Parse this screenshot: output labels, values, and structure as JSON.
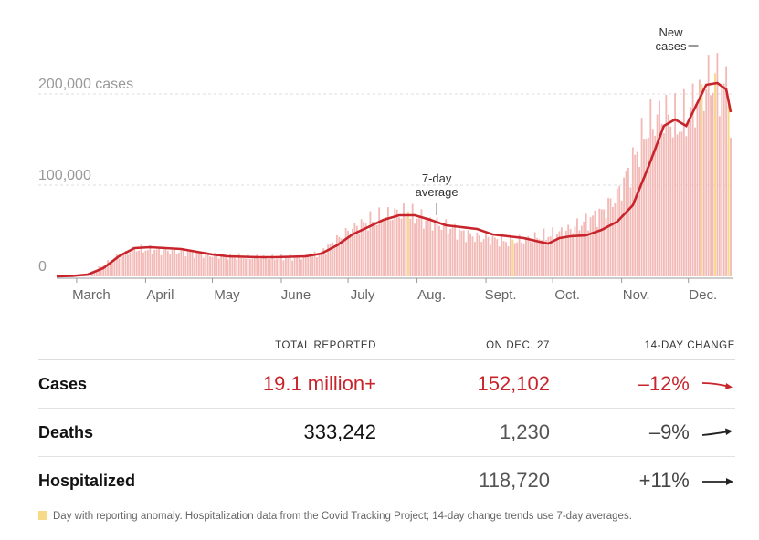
{
  "chart_data": {
    "type": "bar",
    "title": "",
    "xlabel": "",
    "ylabel": "",
    "ylim": [
      0,
      220000
    ],
    "grid": true,
    "y_ticks": [
      {
        "value": 0,
        "label": "0"
      },
      {
        "value": 100000,
        "label": "100,000"
      },
      {
        "value": 200000,
        "label": "200,000 cases"
      }
    ],
    "x_ticks": [
      {
        "day": 9,
        "label": "March"
      },
      {
        "day": 40,
        "label": "April"
      },
      {
        "day": 70,
        "label": "May"
      },
      {
        "day": 101,
        "label": "June"
      },
      {
        "day": 131,
        "label": "July"
      },
      {
        "day": 162,
        "label": "Aug."
      },
      {
        "day": 193,
        "label": "Sept."
      },
      {
        "day": 223,
        "label": "Oct."
      },
      {
        "day": 254,
        "label": "Nov."
      },
      {
        "day": 284,
        "label": "Dec."
      }
    ],
    "series": [
      {
        "kind": "bars",
        "note": "daily new cases",
        "values_by_day": [
          [
            0,
            100
          ],
          [
            7,
            600
          ],
          [
            14,
            2500
          ],
          [
            21,
            12000
          ],
          [
            28,
            22000
          ],
          [
            35,
            30000
          ],
          [
            42,
            29000
          ],
          [
            49,
            28000
          ],
          [
            56,
            27000
          ],
          [
            63,
            25000
          ],
          [
            70,
            23000
          ],
          [
            77,
            22000
          ],
          [
            84,
            21000
          ],
          [
            91,
            21000
          ],
          [
            98,
            20000
          ],
          [
            105,
            21000
          ],
          [
            112,
            22000
          ],
          [
            119,
            26000
          ],
          [
            126,
            40000
          ],
          [
            133,
            52000
          ],
          [
            140,
            60000
          ],
          [
            147,
            65000
          ],
          [
            154,
            70000
          ],
          [
            161,
            66000
          ],
          [
            168,
            60000
          ],
          [
            175,
            55000
          ],
          [
            182,
            48000
          ],
          [
            189,
            43000
          ],
          [
            196,
            41000
          ],
          [
            203,
            38000
          ],
          [
            210,
            40000
          ],
          [
            217,
            43000
          ],
          [
            224,
            46000
          ],
          [
            231,
            52000
          ],
          [
            238,
            60000
          ],
          [
            245,
            70000
          ],
          [
            252,
            88000
          ],
          [
            259,
            125000
          ],
          [
            266,
            165000
          ],
          [
            273,
            178000
          ],
          [
            280,
            165000
          ],
          [
            287,
            190000
          ],
          [
            294,
            215000
          ],
          [
            301,
            205000
          ],
          [
            303,
            152102
          ]
        ]
      },
      {
        "kind": "line",
        "name": "7-day average",
        "values_by_day": [
          [
            0,
            0
          ],
          [
            7,
            500
          ],
          [
            14,
            2000
          ],
          [
            21,
            9000
          ],
          [
            28,
            22000
          ],
          [
            35,
            31000
          ],
          [
            42,
            32000
          ],
          [
            49,
            31000
          ],
          [
            56,
            30000
          ],
          [
            63,
            27000
          ],
          [
            70,
            24000
          ],
          [
            77,
            22000
          ],
          [
            84,
            21500
          ],
          [
            91,
            21000
          ],
          [
            98,
            21000
          ],
          [
            105,
            21500
          ],
          [
            112,
            22000
          ],
          [
            119,
            25000
          ],
          [
            126,
            34000
          ],
          [
            133,
            46000
          ],
          [
            140,
            54000
          ],
          [
            147,
            62000
          ],
          [
            154,
            67000
          ],
          [
            161,
            67000
          ],
          [
            168,
            62000
          ],
          [
            175,
            56000
          ],
          [
            182,
            54000
          ],
          [
            189,
            52000
          ],
          [
            196,
            46000
          ],
          [
            203,
            44000
          ],
          [
            210,
            42000
          ],
          [
            217,
            38000
          ],
          [
            221,
            36000
          ],
          [
            226,
            42000
          ],
          [
            231,
            44000
          ],
          [
            238,
            45000
          ],
          [
            245,
            51000
          ],
          [
            252,
            60000
          ],
          [
            259,
            78000
          ],
          [
            266,
            120000
          ],
          [
            273,
            165000
          ],
          [
            278,
            172000
          ],
          [
            283,
            165000
          ],
          [
            287,
            185000
          ],
          [
            292,
            210000
          ],
          [
            297,
            212000
          ],
          [
            301,
            205000
          ],
          [
            303,
            180000
          ]
        ]
      }
    ],
    "anomaly_days": [
      158,
      205,
      290,
      296,
      302
    ],
    "annotations": [
      {
        "text_lines": [
          "7-day",
          "average"
        ],
        "day": 161
      },
      {
        "text_lines": [
          "New",
          "cases"
        ],
        "day": 295
      }
    ],
    "colors": {
      "bars": "#f2b9b6",
      "line": "#c8242b",
      "anomaly": "#f7d98a",
      "grid": "#dddddd"
    }
  },
  "table": {
    "headers": {
      "total": "TOTAL REPORTED",
      "today": "ON DEC. 27",
      "change": "14-DAY CHANGE"
    },
    "rows": [
      {
        "label": "Cases",
        "total": "19.1 million+",
        "today": "152,102",
        "change": "–12%"
      },
      {
        "label": "Deaths",
        "total": "333,242",
        "today": "1,230",
        "change": "–9%"
      },
      {
        "label": "Hospitalized",
        "total": "",
        "today": "118,720",
        "change": "+11%"
      }
    ]
  },
  "footnote": "Day with reporting anomaly. Hospitalization data from the Covid Tracking Project; 14-day change trends use 7-day averages."
}
